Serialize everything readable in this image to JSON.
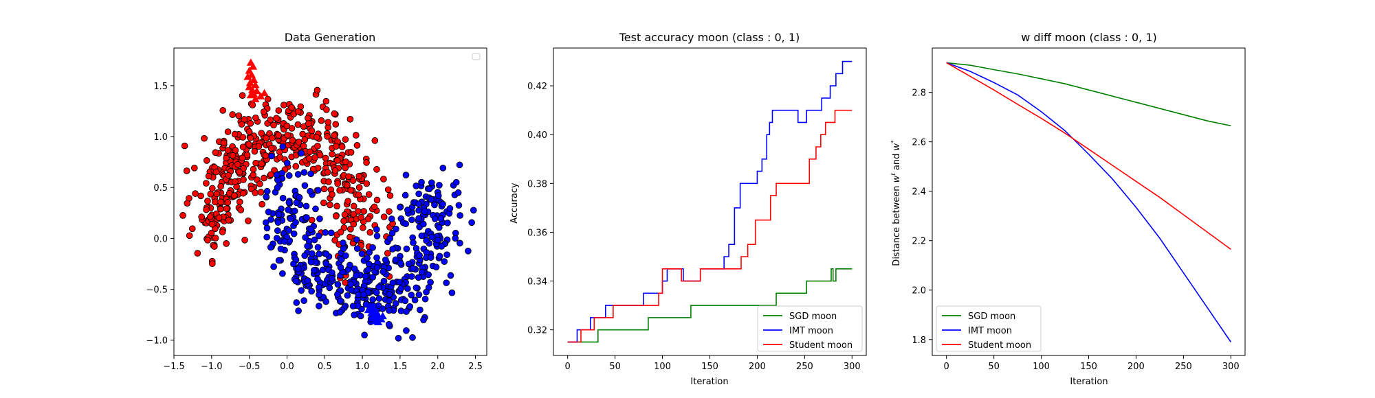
{
  "chart_data": [
    {
      "type": "scatter",
      "title": "Data Generation",
      "xlabel": "",
      "ylabel": "",
      "xlim": [
        -1.5,
        2.65
      ],
      "ylim": [
        -1.15,
        1.87
      ],
      "xticks": [
        -1.5,
        -1.0,
        -0.5,
        0.0,
        0.5,
        1.0,
        1.5,
        2.0,
        2.5
      ],
      "xtick_labels": [
        "−1.5",
        "−1.0",
        "−0.5",
        "0.0",
        "0.5",
        "1.0",
        "1.5",
        "2.0",
        "2.5"
      ],
      "yticks": [
        -1.0,
        -0.5,
        0.0,
        0.5,
        1.0,
        1.5
      ],
      "ytick_labels": [
        "−1.0",
        "−0.5",
        "0.0",
        "0.5",
        "1.0",
        "1.5"
      ],
      "grid": false,
      "legend": "top-right (empty)",
      "series": [
        {
          "color": "#ff0000",
          "marker": "circle",
          "shape": "upper-moon",
          "n_points": 500,
          "center": [
            0.0,
            0.0
          ],
          "radius": 1.0,
          "noise": 0.2,
          "value_range": {
            "x": [
              -1.4,
              1.4
            ],
            "y": [
              -0.4,
              1.55
            ]
          }
        },
        {
          "color": "#0000ff",
          "marker": "circle",
          "shape": "lower-moon",
          "n_points": 500,
          "center": [
            1.0,
            0.5
          ],
          "radius": 1.0,
          "noise": 0.2,
          "value_range": {
            "x": [
              -0.1,
              2.5
            ],
            "y": [
              -1.0,
              0.8
            ]
          }
        },
        {
          "color": "#ff0000",
          "marker": "triangle",
          "cluster": "near (-0.45, 1.55)",
          "points": [
            [
              -0.48,
              1.72
            ],
            [
              -0.45,
              1.68
            ],
            [
              -0.5,
              1.64
            ],
            [
              -0.47,
              1.6
            ],
            [
              -0.52,
              1.58
            ],
            [
              -0.44,
              1.55
            ],
            [
              -0.49,
              1.52
            ],
            [
              -0.42,
              1.5
            ],
            [
              -0.5,
              1.48
            ],
            [
              -0.46,
              1.45
            ],
            [
              -0.4,
              1.44
            ],
            [
              -0.44,
              1.41
            ],
            [
              -0.48,
              1.4
            ],
            [
              -0.42,
              1.36
            ],
            [
              -0.35,
              1.39
            ],
            [
              -0.3,
              1.42
            ]
          ]
        },
        {
          "color": "#0000ff",
          "marker": "triangle",
          "cluster": "near (1.15, -0.75)",
          "points": [
            [
              1.1,
              -0.68
            ],
            [
              1.15,
              -0.7
            ],
            [
              1.18,
              -0.72
            ],
            [
              1.12,
              -0.74
            ],
            [
              1.2,
              -0.75
            ],
            [
              1.16,
              -0.77
            ],
            [
              1.22,
              -0.78
            ],
            [
              1.14,
              -0.79
            ],
            [
              1.19,
              -0.8
            ],
            [
              1.25,
              -0.8
            ],
            [
              1.17,
              -0.82
            ],
            [
              1.21,
              -0.83
            ],
            [
              1.08,
              -0.71
            ],
            [
              1.27,
              -0.77
            ]
          ]
        }
      ]
    },
    {
      "type": "line",
      "title": "Test accuracy moon (class : 0, 1)",
      "xlabel": "Iteration",
      "ylabel": "Accuracy",
      "xlim": [
        -15,
        315
      ],
      "ylim": [
        0.3095,
        0.4355
      ],
      "xticks": [
        0,
        50,
        100,
        150,
        200,
        250,
        300
      ],
      "yticks": [
        0.32,
        0.34,
        0.36,
        0.38,
        0.4,
        0.42
      ],
      "ytick_labels": [
        "0.32",
        "0.34",
        "0.36",
        "0.38",
        "0.40",
        "0.42"
      ],
      "grid": false,
      "legend": "lower-right",
      "series": [
        {
          "name": "SGD moon",
          "color": "#008000",
          "step": true,
          "points": [
            [
              0,
              0.315
            ],
            [
              32,
              0.315
            ],
            [
              32,
              0.32
            ],
            [
              85,
              0.32
            ],
            [
              85,
              0.325
            ],
            [
              130,
              0.325
            ],
            [
              130,
              0.33
            ],
            [
              220,
              0.33
            ],
            [
              220,
              0.335
            ],
            [
              252,
              0.335
            ],
            [
              252,
              0.34
            ],
            [
              278,
              0.34
            ],
            [
              278,
              0.345
            ],
            [
              280,
              0.345
            ],
            [
              280,
              0.34
            ],
            [
              283,
              0.34
            ],
            [
              283,
              0.345
            ],
            [
              300,
              0.345
            ]
          ]
        },
        {
          "name": "IMT moon",
          "color": "#0000ff",
          "step": true,
          "points": [
            [
              0,
              0.315
            ],
            [
              10,
              0.315
            ],
            [
              10,
              0.32
            ],
            [
              24,
              0.32
            ],
            [
              24,
              0.325
            ],
            [
              40,
              0.325
            ],
            [
              40,
              0.33
            ],
            [
              80,
              0.33
            ],
            [
              80,
              0.335
            ],
            [
              100,
              0.335
            ],
            [
              100,
              0.34
            ],
            [
              105,
              0.34
            ],
            [
              105,
              0.345
            ],
            [
              122,
              0.345
            ],
            [
              122,
              0.34
            ],
            [
              140,
              0.34
            ],
            [
              140,
              0.345
            ],
            [
              165,
              0.345
            ],
            [
              165,
              0.35
            ],
            [
              170,
              0.35
            ],
            [
              170,
              0.355
            ],
            [
              176,
              0.355
            ],
            [
              176,
              0.37
            ],
            [
              182,
              0.37
            ],
            [
              182,
              0.38
            ],
            [
              200,
              0.38
            ],
            [
              200,
              0.385
            ],
            [
              205,
              0.385
            ],
            [
              205,
              0.39
            ],
            [
              210,
              0.39
            ],
            [
              210,
              0.4
            ],
            [
              213,
              0.4
            ],
            [
              213,
              0.405
            ],
            [
              216,
              0.405
            ],
            [
              216,
              0.41
            ],
            [
              243,
              0.41
            ],
            [
              243,
              0.405
            ],
            [
              252,
              0.405
            ],
            [
              252,
              0.41
            ],
            [
              268,
              0.41
            ],
            [
              268,
              0.415
            ],
            [
              277,
              0.415
            ],
            [
              277,
              0.42
            ],
            [
              283,
              0.42
            ],
            [
              283,
              0.425
            ],
            [
              290,
              0.425
            ],
            [
              290,
              0.43
            ],
            [
              300,
              0.43
            ]
          ]
        },
        {
          "name": "Student moon",
          "color": "#ff0000",
          "step": true,
          "points": [
            [
              0,
              0.315
            ],
            [
              14,
              0.315
            ],
            [
              14,
              0.32
            ],
            [
              28,
              0.32
            ],
            [
              28,
              0.325
            ],
            [
              48,
              0.325
            ],
            [
              48,
              0.33
            ],
            [
              96,
              0.33
            ],
            [
              96,
              0.335
            ],
            [
              100,
              0.335
            ],
            [
              100,
              0.345
            ],
            [
              120,
              0.345
            ],
            [
              120,
              0.34
            ],
            [
              140,
              0.34
            ],
            [
              140,
              0.345
            ],
            [
              183,
              0.345
            ],
            [
              183,
              0.35
            ],
            [
              190,
              0.35
            ],
            [
              190,
              0.355
            ],
            [
              198,
              0.355
            ],
            [
              198,
              0.365
            ],
            [
              214,
              0.365
            ],
            [
              214,
              0.375
            ],
            [
              220,
              0.375
            ],
            [
              220,
              0.38
            ],
            [
              255,
              0.38
            ],
            [
              255,
              0.39
            ],
            [
              262,
              0.39
            ],
            [
              262,
              0.395
            ],
            [
              267,
              0.395
            ],
            [
              267,
              0.4
            ],
            [
              272,
              0.4
            ],
            [
              272,
              0.405
            ],
            [
              282,
              0.405
            ],
            [
              282,
              0.41
            ],
            [
              300,
              0.41
            ]
          ]
        }
      ]
    },
    {
      "type": "line",
      "title": "w diff moon (class : 0, 1)",
      "xlabel": "Iteration",
      "ylabel": "Distance between w^t and w^*",
      "ylabel_parts": [
        "Distance between ",
        "w",
        "t",
        " and ",
        "w",
        "*"
      ],
      "xlim": [
        -15,
        315
      ],
      "ylim": [
        1.7355,
        2.9795
      ],
      "xticks": [
        0,
        50,
        100,
        150,
        200,
        250,
        300
      ],
      "yticks": [
        1.8,
        2.0,
        2.2,
        2.4,
        2.6,
        2.8
      ],
      "ytick_labels": [
        "1.8",
        "2.0",
        "2.2",
        "2.4",
        "2.6",
        "2.8"
      ],
      "grid": false,
      "legend": "lower-left",
      "series": [
        {
          "name": "SGD moon",
          "color": "#008000",
          "points": [
            [
              0,
              2.92
            ],
            [
              25,
              2.91
            ],
            [
              50,
              2.892
            ],
            [
              75,
              2.875
            ],
            [
              100,
              2.855
            ],
            [
              125,
              2.835
            ],
            [
              150,
              2.81
            ],
            [
              175,
              2.785
            ],
            [
              200,
              2.76
            ],
            [
              225,
              2.735
            ],
            [
              250,
              2.71
            ],
            [
              275,
              2.685
            ],
            [
              300,
              2.665
            ]
          ]
        },
        {
          "name": "IMT moon",
          "color": "#0000ff",
          "points": [
            [
              0,
              2.92
            ],
            [
              25,
              2.885
            ],
            [
              50,
              2.84
            ],
            [
              75,
              2.79
            ],
            [
              100,
              2.722
            ],
            [
              125,
              2.645
            ],
            [
              150,
              2.55
            ],
            [
              175,
              2.45
            ],
            [
              200,
              2.335
            ],
            [
              225,
              2.21
            ],
            [
              250,
              2.07
            ],
            [
              275,
              1.93
            ],
            [
              300,
              1.79
            ]
          ]
        },
        {
          "name": "Student moon",
          "color": "#ff0000",
          "points": [
            [
              0,
              2.92
            ],
            [
              25,
              2.865
            ],
            [
              50,
              2.81
            ],
            [
              75,
              2.752
            ],
            [
              100,
              2.695
            ],
            [
              125,
              2.635
            ],
            [
              150,
              2.57
            ],
            [
              175,
              2.505
            ],
            [
              200,
              2.44
            ],
            [
              225,
              2.375
            ],
            [
              250,
              2.305
            ],
            [
              275,
              2.235
            ],
            [
              300,
              2.165
            ]
          ]
        }
      ]
    }
  ]
}
